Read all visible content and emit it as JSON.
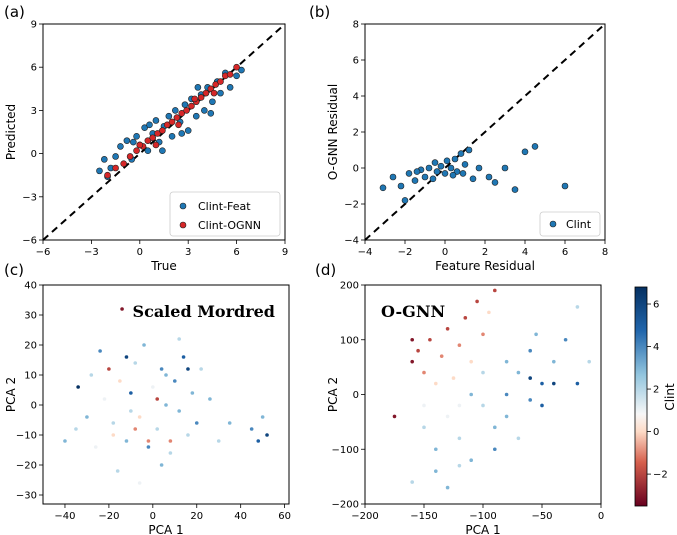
{
  "figure": {
    "panel_labels": [
      "(a)",
      "(b)",
      "(c)",
      "(d)"
    ]
  },
  "chart_data": [
    {
      "panel": "(a)",
      "type": "scatter",
      "xlabel": "True",
      "ylabel": "Predicted",
      "xlim": [
        -6,
        9
      ],
      "ylim": [
        -6,
        9
      ],
      "xticks": [
        -6,
        -3,
        0,
        3,
        6,
        9
      ],
      "yticks": [
        -6,
        -3,
        0,
        3,
        6,
        9
      ],
      "reference_line": "y = x (dashed)",
      "legend_position": "lower-right",
      "series": [
        {
          "name": "Clint-Feat",
          "color": "#1f77b4",
          "trend": "Predicted ≈ True, wider spread",
          "points": [
            [
              -2.5,
              -1.2
            ],
            [
              -2.2,
              -0.4
            ],
            [
              -2.0,
              -1.6
            ],
            [
              -1.5,
              -0.2
            ],
            [
              -1.2,
              0.5
            ],
            [
              -0.8,
              0.9
            ],
            [
              -0.5,
              -0.4
            ],
            [
              -0.2,
              1.2
            ],
            [
              0.0,
              0.6
            ],
            [
              0.3,
              1.8
            ],
            [
              0.5,
              0.2
            ],
            [
              0.8,
              1.4
            ],
            [
              1.0,
              2.3
            ],
            [
              1.2,
              0.8
            ],
            [
              1.5,
              1.9
            ],
            [
              1.8,
              2.6
            ],
            [
              2.0,
              1.2
            ],
            [
              2.2,
              3.0
            ],
            [
              2.5,
              2.2
            ],
            [
              2.8,
              3.4
            ],
            [
              3.0,
              1.6
            ],
            [
              3.2,
              3.8
            ],
            [
              3.5,
              2.6
            ],
            [
              3.8,
              4.1
            ],
            [
              4.0,
              3.0
            ],
            [
              4.2,
              4.6
            ],
            [
              4.5,
              3.6
            ],
            [
              4.8,
              5.0
            ],
            [
              5.0,
              4.2
            ],
            [
              5.3,
              5.6
            ],
            [
              5.6,
              4.6
            ],
            [
              6.0,
              5.4
            ],
            [
              6.3,
              5.8
            ],
            [
              -1.8,
              -1.0
            ],
            [
              0.6,
              2.0
            ],
            [
              2.6,
              1.4
            ],
            [
              3.6,
              4.6
            ],
            [
              4.4,
              2.8
            ],
            [
              1.4,
              0.2
            ],
            [
              -0.4,
              0.8
            ]
          ]
        },
        {
          "name": "Clint-OGNN",
          "color": "#d62728",
          "trend": "Predicted ≈ True, tight along y = x",
          "points": [
            [
              -2.0,
              -1.5
            ],
            [
              -1.5,
              -1.0
            ],
            [
              -1.0,
              -0.7
            ],
            [
              -0.6,
              -0.2
            ],
            [
              -0.2,
              0.2
            ],
            [
              0.2,
              0.5
            ],
            [
              0.5,
              0.9
            ],
            [
              0.8,
              1.1
            ],
            [
              1.1,
              1.4
            ],
            [
              1.4,
              1.6
            ],
            [
              1.7,
              2.0
            ],
            [
              2.0,
              2.2
            ],
            [
              2.3,
              2.5
            ],
            [
              2.6,
              2.8
            ],
            [
              2.9,
              3.0
            ],
            [
              3.2,
              3.3
            ],
            [
              3.5,
              3.6
            ],
            [
              3.8,
              3.9
            ],
            [
              4.1,
              4.2
            ],
            [
              4.4,
              4.5
            ],
            [
              4.7,
              4.8
            ],
            [
              5.0,
              5.0
            ],
            [
              5.3,
              5.4
            ],
            [
              5.6,
              5.5
            ],
            [
              6.0,
              6.0
            ],
            [
              1.0,
              0.6
            ],
            [
              2.4,
              2.0
            ],
            [
              3.4,
              3.8
            ],
            [
              4.6,
              4.2
            ],
            [
              0.0,
              0.6
            ]
          ]
        }
      ]
    },
    {
      "panel": "(b)",
      "type": "scatter",
      "xlabel": "Feature Residual",
      "ylabel": "O-GNN Residual",
      "xlim": [
        -4,
        8
      ],
      "ylim": [
        -4,
        8
      ],
      "xticks": [
        -4,
        -2,
        0,
        2,
        4,
        6,
        8
      ],
      "yticks": [
        -4,
        -2,
        0,
        2,
        4,
        6,
        8
      ],
      "reference_line": "y = x (dashed)",
      "legend_position": "lower-right",
      "series": [
        {
          "name": "Clint",
          "color": "#1f77b4",
          "points": [
            [
              -3.1,
              -1.1
            ],
            [
              -2.6,
              -0.5
            ],
            [
              -2.2,
              -1.0
            ],
            [
              -2.0,
              -1.8
            ],
            [
              -1.8,
              -0.3
            ],
            [
              -1.5,
              -0.7
            ],
            [
              -1.2,
              -0.1
            ],
            [
              -1.0,
              -0.5
            ],
            [
              -0.8,
              0.0
            ],
            [
              -0.6,
              -0.6
            ],
            [
              -0.4,
              -0.2
            ],
            [
              -0.2,
              0.1
            ],
            [
              0.0,
              -0.3
            ],
            [
              0.1,
              0.4
            ],
            [
              0.3,
              0.0
            ],
            [
              0.5,
              0.5
            ],
            [
              0.6,
              -0.2
            ],
            [
              0.8,
              0.8
            ],
            [
              1.0,
              0.2
            ],
            [
              1.2,
              1.0
            ],
            [
              1.4,
              -0.6
            ],
            [
              1.7,
              0.0
            ],
            [
              2.2,
              -0.5
            ],
            [
              2.5,
              -0.8
            ],
            [
              3.0,
              0.0
            ],
            [
              3.5,
              -1.2
            ],
            [
              4.0,
              0.9
            ],
            [
              4.5,
              1.2
            ],
            [
              6.0,
              -1.0
            ],
            [
              -0.5,
              0.3
            ],
            [
              0.4,
              -0.4
            ],
            [
              -1.4,
              -0.2
            ],
            [
              0.9,
              -0.3
            ]
          ]
        }
      ]
    },
    {
      "panel": "(c)",
      "type": "scatter",
      "title_annotation": "Scaled Mordred",
      "xlabel": "PCA 1",
      "ylabel": "PCA 2",
      "xlim": [
        -50,
        62
      ],
      "ylim": [
        -33,
        40
      ],
      "xticks": [
        -40,
        -20,
        0,
        20,
        40,
        60
      ],
      "yticks": [
        -30,
        -20,
        -10,
        0,
        10,
        20,
        30,
        40
      ],
      "color_by": "Clint",
      "points": [
        [
          -22,
          2,
          1
        ],
        [
          -18,
          -6,
          2
        ],
        [
          -15,
          8,
          0
        ],
        [
          -12,
          -12,
          3
        ],
        [
          -10,
          4,
          5
        ],
        [
          -8,
          14,
          2
        ],
        [
          -6,
          -4,
          0
        ],
        [
          -4,
          20,
          3
        ],
        [
          -2,
          -14,
          4
        ],
        [
          0,
          6,
          1
        ],
        [
          2,
          -8,
          2
        ],
        [
          4,
          12,
          4
        ],
        [
          6,
          0,
          3
        ],
        [
          8,
          -16,
          2
        ],
        [
          10,
          8,
          4
        ],
        [
          12,
          -2,
          3
        ],
        [
          14,
          16,
          5
        ],
        [
          16,
          -10,
          2
        ],
        [
          18,
          4,
          3
        ],
        [
          20,
          -6,
          4
        ],
        [
          22,
          12,
          2
        ],
        [
          -30,
          -4,
          3
        ],
        [
          -28,
          10,
          2
        ],
        [
          -26,
          -14,
          1
        ],
        [
          -24,
          18,
          4
        ],
        [
          -35,
          -8,
          2
        ],
        [
          -40,
          -12,
          3
        ],
        [
          -16,
          -22,
          2
        ],
        [
          -6,
          -26,
          1
        ],
        [
          4,
          -20,
          3
        ],
        [
          12,
          22,
          2
        ],
        [
          26,
          2,
          3
        ],
        [
          30,
          -12,
          2
        ],
        [
          35,
          -6,
          3
        ],
        [
          45,
          -8,
          4
        ],
        [
          48,
          -12,
          5
        ],
        [
          50,
          -4,
          3
        ],
        [
          52,
          -10,
          6
        ],
        [
          -14,
          32,
          -3
        ],
        [
          -20,
          12,
          -2
        ],
        [
          -8,
          -8,
          -1
        ],
        [
          2,
          2,
          -2
        ],
        [
          8,
          -12,
          -1
        ],
        [
          -18,
          -10,
          0
        ],
        [
          -12,
          16,
          6
        ],
        [
          16,
          12,
          6
        ],
        [
          -34,
          6,
          7
        ],
        [
          -2,
          -12,
          -1
        ],
        [
          6,
          10,
          3
        ],
        [
          -10,
          -2,
          2
        ]
      ]
    },
    {
      "panel": "(d)",
      "type": "scatter",
      "title_annotation": "O-GNN",
      "xlabel": "PCA 1",
      "ylabel": "PCA 2",
      "xlim": [
        -200,
        0
      ],
      "ylim": [
        -200,
        200
      ],
      "xticks": [
        -200,
        -150,
        -100,
        -50,
        0
      ],
      "yticks": [
        -200,
        -100,
        0,
        100,
        200
      ],
      "color_by": "Clint",
      "points": [
        [
          -160,
          60,
          -3
        ],
        [
          -155,
          80,
          -2
        ],
        [
          -150,
          40,
          -1
        ],
        [
          -145,
          100,
          -2
        ],
        [
          -140,
          20,
          0
        ],
        [
          -135,
          70,
          -1
        ],
        [
          -130,
          120,
          -2
        ],
        [
          -125,
          30,
          0
        ],
        [
          -120,
          90,
          -1
        ],
        [
          -115,
          140,
          -2
        ],
        [
          -110,
          60,
          0
        ],
        [
          -105,
          170,
          -2
        ],
        [
          -100,
          110,
          -1
        ],
        [
          -95,
          150,
          0
        ],
        [
          -90,
          190,
          -2
        ],
        [
          -150,
          -60,
          2
        ],
        [
          -140,
          -100,
          3
        ],
        [
          -130,
          -40,
          1
        ],
        [
          -120,
          -80,
          2
        ],
        [
          -110,
          -120,
          3
        ],
        [
          -100,
          -20,
          2
        ],
        [
          -90,
          -60,
          3
        ],
        [
          -80,
          0,
          4
        ],
        [
          -70,
          40,
          3
        ],
        [
          -60,
          80,
          4
        ],
        [
          -50,
          20,
          5
        ],
        [
          -40,
          60,
          3
        ],
        [
          -30,
          100,
          4
        ],
        [
          -20,
          20,
          5
        ],
        [
          -10,
          60,
          2
        ],
        [
          -120,
          -20,
          1
        ],
        [
          -100,
          40,
          2
        ],
        [
          -80,
          -40,
          3
        ],
        [
          -60,
          -10,
          4
        ],
        [
          -140,
          -140,
          3
        ],
        [
          -160,
          -160,
          2
        ],
        [
          -130,
          -170,
          3
        ],
        [
          -90,
          -100,
          4
        ],
        [
          -70,
          -80,
          2
        ],
        [
          -50,
          -20,
          5
        ],
        [
          -110,
          0,
          3
        ],
        [
          -150,
          -20,
          1
        ],
        [
          -40,
          20,
          6
        ],
        [
          -60,
          30,
          6
        ],
        [
          -160,
          100,
          -3
        ],
        [
          -175,
          -40,
          -3
        ],
        [
          -120,
          -130,
          2
        ],
        [
          -80,
          60,
          3
        ],
        [
          -20,
          160,
          2
        ],
        [
          -55,
          110,
          3
        ]
      ]
    }
  ],
  "colorbar": {
    "label": "Clint",
    "range": [
      -3.5,
      6.8
    ],
    "ticks": [
      -2,
      0,
      2,
      4,
      6
    ],
    "colormap": "RdBu"
  }
}
